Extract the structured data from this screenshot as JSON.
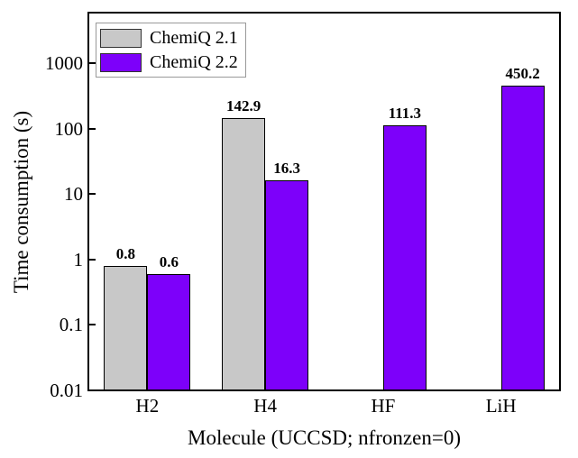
{
  "figure": {
    "background": "#ffffff",
    "axis_color": "#000000"
  },
  "legend": {
    "items": [
      {
        "label": "ChemiQ 2.1",
        "color": "#c8c8c8"
      },
      {
        "label": "ChemiQ 2.2",
        "color": "#7d00fa"
      }
    ]
  },
  "chart_data": {
    "type": "bar",
    "title": "",
    "xlabel": "Molecule (UCCSD; nfronzen=0)",
    "ylabel": "Time consumption (s)",
    "yscale": "log",
    "ylim": [
      0.01,
      5715
    ],
    "grid": false,
    "legend_position": "upper-left",
    "categories": [
      "H2",
      "H4",
      "HF",
      "LiH"
    ],
    "yticks": [
      {
        "value": 1000,
        "label": "1000"
      },
      {
        "value": 100,
        "label": "100"
      },
      {
        "value": 10,
        "label": "10"
      },
      {
        "value": 1,
        "label": "1"
      },
      {
        "value": 0.1,
        "label": "0.1"
      },
      {
        "value": 0.01,
        "label": "0.01"
      }
    ],
    "series": [
      {
        "name": "ChemiQ 2.1",
        "color": "#c8c8c8",
        "edge_color": "#000000",
        "values": [
          0.8,
          142.9,
          null,
          null
        ],
        "value_labels": [
          "0.8",
          "142.9",
          null,
          null
        ]
      },
      {
        "name": "ChemiQ 2.2",
        "color": "#7d00fa",
        "edge_color": "#000000",
        "values": [
          0.6,
          16.3,
          111.3,
          450.2
        ],
        "value_labels": [
          "0.6",
          "16.3",
          "111.3",
          "450.2"
        ]
      }
    ]
  }
}
